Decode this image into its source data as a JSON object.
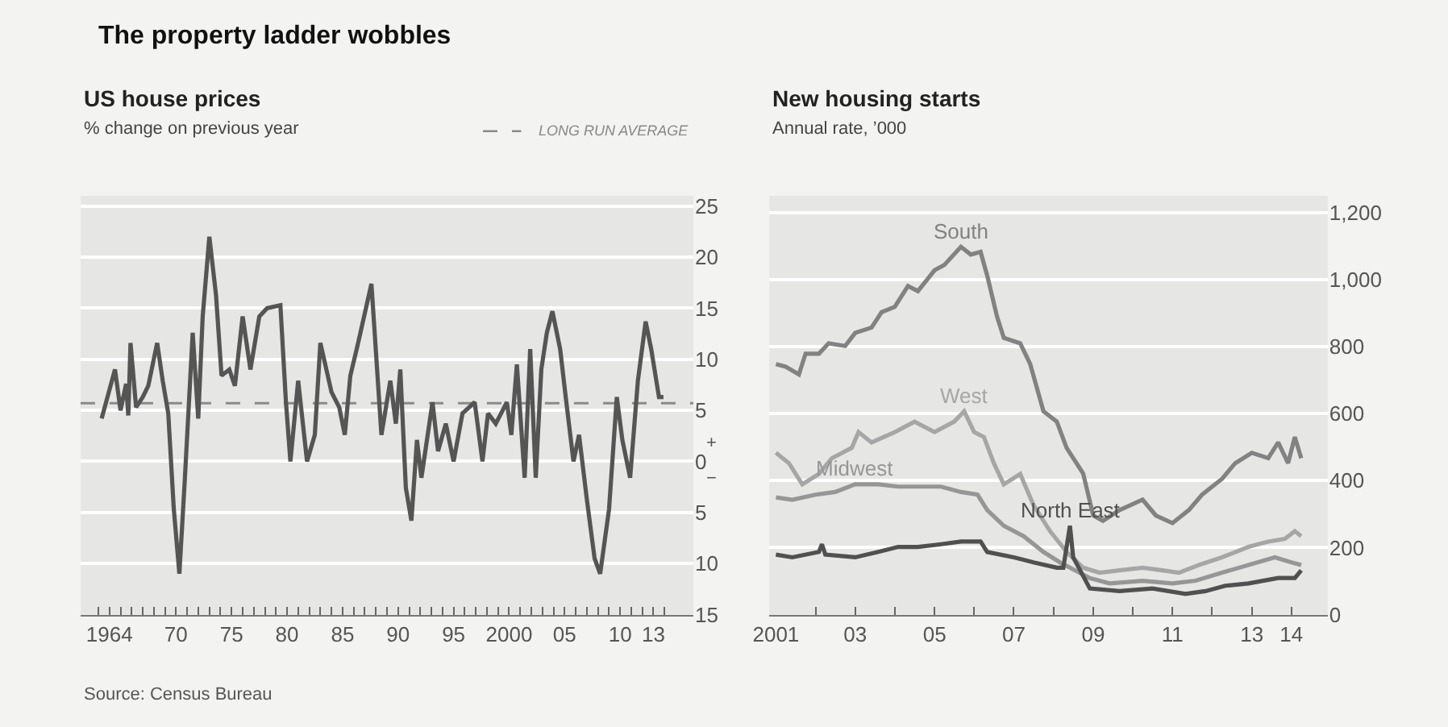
{
  "chart_data": [
    {
      "type": "line",
      "title": "US house prices",
      "ylabel": "% change on previous year",
      "annotations": [
        "The property ladder wobbles",
        "Source: Census Bureau",
        "+",
        "−"
      ],
      "x": [
        1963.3,
        1964.5,
        1965,
        1965.5,
        1965.7,
        1965.9,
        1966.4,
        1967,
        1967.5,
        1968.3,
        1968.8,
        1969.3,
        1969.8,
        1970.3,
        1970.8,
        1971.5,
        1972,
        1972.4,
        1973,
        1973.6,
        1974.1,
        1974.8,
        1975.3,
        1976,
        1976.7,
        1977.5,
        1978.2,
        1979.4,
        1979.9,
        1980.3,
        1981,
        1981.8,
        1982.5,
        1983,
        1984,
        1984.7,
        1985.2,
        1985.7,
        1986.4,
        1987.6,
        1988.5,
        1989.3,
        1989.8,
        1990.2,
        1990.7,
        1991.2,
        1991.7,
        1992.1,
        1993.1,
        1993.6,
        1994.3,
        1995,
        1995.8,
        1996.9,
        1997.6,
        1998.1,
        1998.8,
        1999.8,
        2000.2,
        2000.7,
        2001.4,
        2001.9,
        2002.4,
        2002.9,
        2003.4,
        2003.9,
        2004.6,
        2005.1,
        2005.8,
        2006.3,
        2007,
        2007.7,
        2008.2,
        2009,
        2009.7,
        2010.2,
        2010.9,
        2011.6,
        2012.3,
        2012.8,
        2013.5,
        2013.9
      ],
      "series": [
        {
          "color": "#555555",
          "values": [
            4.2,
            9,
            5,
            7.6,
            4.5,
            11.6,
            5.3,
            6.3,
            7.4,
            11.6,
            7.9,
            4.7,
            -4.7,
            -11,
            -1.6,
            12.6,
            4.2,
            14.2,
            22,
            16.3,
            8.4,
            9,
            7.4,
            14.2,
            9,
            14.2,
            15,
            15.3,
            5.8,
            0,
            7.9,
            0,
            2.6,
            11.6,
            6.8,
            5.3,
            2.6,
            8.4,
            11.6,
            17.4,
            2.6,
            7.9,
            3.7,
            9,
            -2.6,
            -5.8,
            2.1,
            -1.6,
            5.8,
            1,
            3.7,
            0,
            4.7,
            5.8,
            0,
            4.7,
            3.7,
            5.8,
            2.6,
            9.5,
            -1.6,
            11,
            -1.6,
            9,
            12.6,
            14.7,
            11,
            6.3,
            0,
            2.6,
            -3.7,
            -9.5,
            -11,
            -4.7,
            6.3,
            2.1,
            -1.6,
            7.9,
            13.7,
            11,
            6.3,
            6.3
          ]
        }
      ],
      "ref_lines": [
        {
          "axis": "y",
          "value": 5.7,
          "label": "LONG RUN AVERAGE",
          "color": "#8a8a8a",
          "line_style": "dashed"
        }
      ],
      "xlim": [
        1961.4,
        2016.6
      ],
      "xticks": [
        {
          "value": 1963,
          "label": null
        },
        {
          "value": 1964,
          "label": "1964"
        },
        {
          "value": 1965,
          "label": null
        },
        {
          "value": 1966,
          "label": null
        },
        {
          "value": 1967,
          "label": null
        },
        {
          "value": 1968,
          "label": null
        },
        {
          "value": 1969,
          "label": null
        },
        {
          "value": 1970,
          "label": "70"
        },
        {
          "value": 1971,
          "label": null
        },
        {
          "value": 1972,
          "label": null
        },
        {
          "value": 1973,
          "label": null
        },
        {
          "value": 1974,
          "label": null
        },
        {
          "value": 1975,
          "label": "75"
        },
        {
          "value": 1976,
          "label": null
        },
        {
          "value": 1977,
          "label": null
        },
        {
          "value": 1978,
          "label": null
        },
        {
          "value": 1979,
          "label": null
        },
        {
          "value": 1980,
          "label": "80"
        },
        {
          "value": 1981,
          "label": null
        },
        {
          "value": 1982,
          "label": null
        },
        {
          "value": 1983,
          "label": null
        },
        {
          "value": 1984,
          "label": null
        },
        {
          "value": 1985,
          "label": "85"
        },
        {
          "value": 1986,
          "label": null
        },
        {
          "value": 1987,
          "label": null
        },
        {
          "value": 1988,
          "label": null
        },
        {
          "value": 1989,
          "label": null
        },
        {
          "value": 1990,
          "label": "90"
        },
        {
          "value": 1991,
          "label": null
        },
        {
          "value": 1992,
          "label": null
        },
        {
          "value": 1993,
          "label": null
        },
        {
          "value": 1994,
          "label": null
        },
        {
          "value": 1995,
          "label": "95"
        },
        {
          "value": 1996,
          "label": null
        },
        {
          "value": 1997,
          "label": null
        },
        {
          "value": 1998,
          "label": null
        },
        {
          "value": 1999,
          "label": null
        },
        {
          "value": 2000,
          "label": "2000"
        },
        {
          "value": 2001,
          "label": null
        },
        {
          "value": 2002,
          "label": null
        },
        {
          "value": 2003,
          "label": null
        },
        {
          "value": 2004,
          "label": null
        },
        {
          "value": 2005,
          "label": "05"
        },
        {
          "value": 2006,
          "label": null
        },
        {
          "value": 2007,
          "label": null
        },
        {
          "value": 2008,
          "label": null
        },
        {
          "value": 2009,
          "label": null
        },
        {
          "value": 2010,
          "label": "10"
        },
        {
          "value": 2011,
          "label": null
        },
        {
          "value": 2012,
          "label": null
        },
        {
          "value": 2013,
          "label": "13"
        },
        {
          "value": 2014,
          "label": null
        }
      ],
      "ylim": [
        -15,
        26
      ],
      "yticks": [
        25,
        20,
        15,
        10,
        5,
        0,
        {
          "value": -5,
          "label": "5"
        },
        {
          "value": -10,
          "label": "10"
        },
        {
          "value": -15,
          "label": "15"
        }
      ],
      "grid": "y",
      "legend": "top right"
    },
    {
      "type": "line",
      "title": "New housing starts",
      "ylabel": "Annual rate, ’000",
      "series": [
        {
          "name": "South",
          "color": "#828282",
          "x": [
            "2001-01",
            "2001-04",
            "2001-08",
            "2001-10",
            "2002-02",
            "2002-05",
            "2002-10",
            "2003-01",
            "2003-06",
            "2003-09",
            "2004-01",
            "2004-05",
            "2004-08",
            "2005-01",
            "2005-04",
            "2005-09",
            "2005-12",
            "2006-03",
            "2006-05",
            "2006-08",
            "2006-10",
            "2007-03",
            "2007-06",
            "2007-10",
            "2008-02",
            "2008-05",
            "2008-10",
            "2009-01",
            "2009-04",
            "2009-09",
            "2010-04",
            "2010-08",
            "2011-01",
            "2011-06",
            "2011-10",
            "2012-04",
            "2012-08",
            "2013-01",
            "2013-06",
            "2013-09",
            "2013-12",
            "2014-02",
            "2014-04"
          ],
          "values": [
            748,
            740,
            717,
            779,
            779,
            810,
            802,
            841,
            857,
            903,
            919,
            981,
            966,
            1028,
            1044,
            1098,
            1075,
            1083,
            1012,
            888,
            826,
            810,
            748,
            607,
            576,
            498,
            421,
            296,
            280,
            312,
            343,
            296,
            273,
            312,
            358,
            405,
            452,
            483,
            467,
            514,
            452,
            530,
            467
          ]
        },
        {
          "name": "West",
          "color": "#a6a6a6",
          "x": [
            "2001-01",
            "2001-05",
            "2001-09",
            "2002-02",
            "2002-06",
            "2002-12",
            "2003-02",
            "2003-06",
            "2004-01",
            "2004-07",
            "2005-01",
            "2005-07",
            "2005-10",
            "2006-01",
            "2006-04",
            "2006-07",
            "2006-10",
            "2007-03",
            "2007-07",
            "2007-12",
            "2008-05",
            "2008-10",
            "2009-03",
            "2009-09",
            "2010-04",
            "2010-10",
            "2011-03",
            "2011-09",
            "2012-04",
            "2012-12",
            "2013-06",
            "2013-11",
            "2014-02",
            "2014-04"
          ],
          "values": [
            483,
            452,
            389,
            420,
            467,
            498,
            545,
            514,
            545,
            576,
            545,
            576,
            607,
            545,
            530,
            452,
            389,
            420,
            327,
            249,
            187,
            140,
            125,
            132,
            140,
            132,
            125,
            148,
            171,
            202,
            218,
            226,
            249,
            234
          ]
        },
        {
          "name": "Midwest",
          "color": "#969696",
          "x": [
            "2001-01",
            "2001-06",
            "2002-01",
            "2002-07",
            "2003-01",
            "2003-08",
            "2004-02",
            "2004-08",
            "2005-03",
            "2005-09",
            "2006-02",
            "2006-05",
            "2006-10",
            "2007-04",
            "2007-10",
            "2008-03",
            "2008-12",
            "2009-06",
            "2010-04",
            "2011-01",
            "2011-08",
            "2012-04",
            "2012-12",
            "2013-08",
            "2014-01",
            "2014-04"
          ],
          "values": [
            350,
            343,
            358,
            366,
            389,
            389,
            382,
            382,
            382,
            366,
            358,
            312,
            265,
            234,
            187,
            156,
            109,
            93,
            101,
            93,
            101,
            125,
            148,
            171,
            156,
            148
          ]
        },
        {
          "name": "North East",
          "color": "#505050",
          "x": [
            "2001-01",
            "2001-06",
            "2002-02",
            "2002-03",
            "2002-04",
            "2003-01",
            "2003-08",
            "2004-02",
            "2004-08",
            "2005-03",
            "2005-09",
            "2006-03",
            "2006-05",
            "2007-01",
            "2007-07",
            "2008-02",
            "2008-04",
            "2008-06",
            "2008-07",
            "2008-12",
            "2009-09",
            "2010-07",
            "2011-05",
            "2011-11",
            "2012-05",
            "2012-12",
            "2013-09",
            "2014-02",
            "2014-04"
          ],
          "values": [
            179,
            171,
            187,
            210,
            179,
            171,
            187,
            202,
            202,
            210,
            218,
            218,
            187,
            171,
            156,
            140,
            140,
            265,
            171,
            78,
            70,
            78,
            62,
            70,
            86,
            93,
            109,
            109,
            132
          ]
        }
      ],
      "xlim": [
        "2000-11",
        "2014-12"
      ],
      "xticks": [
        {
          "value": "2001",
          "label": "2001"
        },
        {
          "value": "2002",
          "label": null
        },
        {
          "value": "2003",
          "label": "03"
        },
        {
          "value": "2004",
          "label": null
        },
        {
          "value": "2005",
          "label": "05"
        },
        {
          "value": "2006",
          "label": null
        },
        {
          "value": "2007",
          "label": "07"
        },
        {
          "value": "2008",
          "label": null
        },
        {
          "value": "2009",
          "label": "09"
        },
        {
          "value": "2010",
          "label": null
        },
        {
          "value": "2011",
          "label": "11"
        },
        {
          "value": "2012",
          "label": null
        },
        {
          "value": "2013",
          "label": "13"
        },
        {
          "value": "2014",
          "label": "14"
        }
      ],
      "ylim": [
        0,
        1250
      ],
      "yticks": [
        0,
        200,
        400,
        600,
        800,
        {
          "value": 1000,
          "label": "1,000"
        },
        {
          "value": 1200,
          "label": "1,200"
        }
      ],
      "grid": "y",
      "legend": false
    }
  ]
}
